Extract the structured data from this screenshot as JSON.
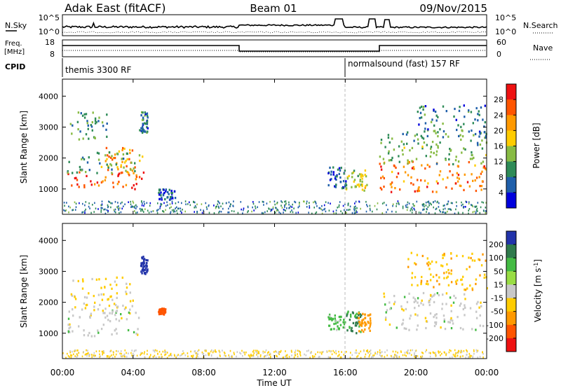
{
  "header": {
    "station": "Adak East (fitACF)",
    "beam": "Beam 01",
    "date": "09/Nov/2015"
  },
  "top_panels": {
    "nsky_label": "N.Sky",
    "nsearch_label": "N.Search",
    "nsky_ticks": [
      "10^5",
      "10^0"
    ],
    "nsearch_ticks": [
      "10^5",
      "10^0"
    ],
    "freq_label": "Freq.",
    "freq_unit": "[MHz]",
    "freq_ticks": [
      "18",
      "8"
    ],
    "nave_label": "Nave",
    "nave_ticks": [
      "60",
      "0"
    ],
    "cpid_label": "CPID",
    "cpid_segments": [
      {
        "label": "themis 3300 RF",
        "start_hour": 0
      },
      {
        "label": "normalsound (fast) 157 RF",
        "start_hour": 16
      }
    ]
  },
  "panels": {
    "y_label": "Slant Range [km]",
    "y_ticks": [
      "4000",
      "3000",
      "2000",
      "1000"
    ],
    "x_label": "Time UT",
    "x_ticks": [
      "00:00",
      "04:00",
      "08:00",
      "12:00",
      "16:00",
      "20:00",
      "00:00"
    ]
  },
  "colorbars": {
    "power": {
      "label": "Power [dB]",
      "ticks": [
        "28",
        "24",
        "20",
        "16",
        "12",
        "8",
        "4"
      ],
      "colors": [
        "#ee1111",
        "#ff5500",
        "#ff9900",
        "#ffcc00",
        "#88bb44",
        "#2e8b57",
        "#1f5faa",
        "#0000dd"
      ]
    },
    "velocity": {
      "label": "Velocity [m s",
      "label_sup": "-1",
      "label_end": "]",
      "ticks": [
        "200",
        "100",
        "50",
        "15",
        "-15",
        "-50",
        "-100",
        "-200"
      ],
      "colors": [
        "#2233aa",
        "#2f7a4c",
        "#44bb44",
        "#99dd44",
        "#c8c8c8",
        "#ffcc00",
        "#ff9900",
        "#ff5500",
        "#ee1111"
      ]
    }
  },
  "chart_data": {
    "type": "heatmap",
    "x_range_hours": [
      0,
      24
    ],
    "y_range_km": [
      180,
      4550
    ],
    "grid": false,
    "marker_hour": 16,
    "power_clusters": [
      {
        "t0": 0.2,
        "t1": 4.6,
        "r0": 950,
        "r1": 1550,
        "level": 26
      },
      {
        "t0": 2.4,
        "t1": 4.2,
        "r0": 1500,
        "r1": 2350,
        "level": 22
      },
      {
        "t0": 0.2,
        "t1": 4.5,
        "r0": 1500,
        "r1": 2200,
        "level": 12
      },
      {
        "t0": 0.4,
        "t1": 2.6,
        "r0": 2600,
        "r1": 3500,
        "level": 10
      },
      {
        "t0": 4.3,
        "t1": 4.8,
        "r0": 2800,
        "r1": 3500,
        "level": 8
      },
      {
        "t0": 5.4,
        "t1": 6.4,
        "r0": 650,
        "r1": 1000,
        "level": 6
      },
      {
        "t0": 15.0,
        "t1": 16.0,
        "r0": 1000,
        "r1": 1700,
        "level": 6
      },
      {
        "t0": 16.0,
        "t1": 17.2,
        "r0": 900,
        "r1": 1600,
        "level": 16
      },
      {
        "t0": 17.9,
        "t1": 24.0,
        "r0": 900,
        "r1": 1900,
        "level": 24
      },
      {
        "t0": 17.9,
        "t1": 24.0,
        "r0": 1800,
        "r1": 2900,
        "level": 12
      },
      {
        "t0": 20.0,
        "t1": 24.0,
        "r0": 2700,
        "r1": 3700,
        "level": 8
      },
      {
        "t0": 0.0,
        "t1": 24.0,
        "r0": 200,
        "r1": 600,
        "level": 8
      }
    ],
    "velocity_clusters": [
      {
        "t0": 0.2,
        "t1": 4.5,
        "r0": 900,
        "r1": 1800,
        "level": 0
      },
      {
        "t0": 0.4,
        "t1": 4.0,
        "r0": 1700,
        "r1": 2800,
        "level": -20
      },
      {
        "t0": 4.4,
        "t1": 4.8,
        "r0": 2900,
        "r1": 3500,
        "level": 150
      },
      {
        "t0": 5.4,
        "t1": 5.8,
        "r0": 1600,
        "r1": 1800,
        "level": -150
      },
      {
        "t0": 15.0,
        "t1": 16.0,
        "r0": 1100,
        "r1": 1600,
        "level": 30
      },
      {
        "t0": 16.0,
        "t1": 16.9,
        "r0": 1000,
        "r1": 1700,
        "level": 60
      },
      {
        "t0": 16.7,
        "t1": 17.4,
        "r0": 1050,
        "r1": 1650,
        "level": -80
      },
      {
        "t0": 18.0,
        "t1": 24.0,
        "r0": 1100,
        "r1": 2300,
        "level": 0
      },
      {
        "t0": 19.5,
        "t1": 24.0,
        "r0": 2400,
        "r1": 3600,
        "level": -40
      },
      {
        "t0": 0.0,
        "t1": 24.0,
        "r0": 200,
        "r1": 450,
        "level": -20
      }
    ]
  }
}
